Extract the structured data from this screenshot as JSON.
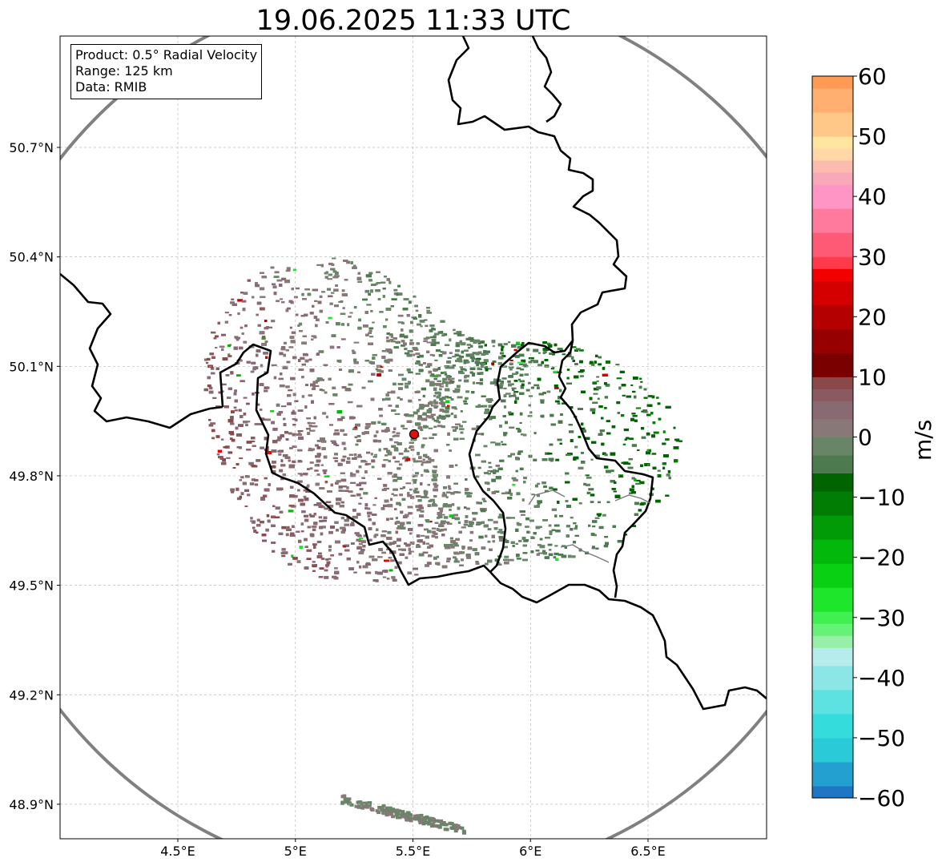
{
  "title": "19.06.2025 11:33 UTC",
  "info_box": {
    "product": "Product: 0.5° Radial Velocity",
    "range": "Range: 125 km",
    "data": "Data: RMIB"
  },
  "map": {
    "lon_range": [
      4.0,
      7.0
    ],
    "lat_range": [
      48.8,
      51.0
    ],
    "x_ticks": [
      {
        "value": 4.5,
        "label": "4.5°E"
      },
      {
        "value": 5.0,
        "label": "5°E"
      },
      {
        "value": 5.5,
        "label": "5.5°E"
      },
      {
        "value": 6.0,
        "label": "6°E"
      },
      {
        "value": 6.5,
        "label": "6.5°E"
      }
    ],
    "y_ticks": [
      {
        "value": 48.9,
        "label": "48.9°N"
      },
      {
        "value": 49.2,
        "label": "49.2°N"
      },
      {
        "value": 49.5,
        "label": "49.5°N"
      },
      {
        "value": 49.8,
        "label": "49.8°N"
      },
      {
        "value": 50.1,
        "label": "50.1°N"
      },
      {
        "value": 50.4,
        "label": "50.4°N"
      },
      {
        "value": 50.7,
        "label": "50.7°N"
      }
    ],
    "radar_site": {
      "lon": 5.505,
      "lat": 49.914
    },
    "gridlines": true,
    "range_ring_color": "#808080",
    "site_marker_color": "#e01010"
  },
  "colorbar": {
    "units": "m/s",
    "min": -60,
    "max": 60,
    "ticks": [
      {
        "value": 60,
        "label": "60"
      },
      {
        "value": 50,
        "label": "50"
      },
      {
        "value": 40,
        "label": "40"
      },
      {
        "value": 30,
        "label": "30"
      },
      {
        "value": 20,
        "label": "20"
      },
      {
        "value": 10,
        "label": "10"
      },
      {
        "value": 0,
        "label": "0"
      },
      {
        "value": -10,
        "label": "−10"
      },
      {
        "value": -20,
        "label": "−20"
      },
      {
        "value": -30,
        "label": "−30"
      },
      {
        "value": -40,
        "label": "−40"
      },
      {
        "value": -50,
        "label": "−50"
      },
      {
        "value": -60,
        "label": "−60"
      }
    ],
    "bands": [
      {
        "from": -60,
        "to": -58,
        "color": "#1f77c4"
      },
      {
        "from": -58,
        "to": -54,
        "color": "#23a0cf"
      },
      {
        "from": -54,
        "to": -50,
        "color": "#2bcad9"
      },
      {
        "from": -50,
        "to": -46,
        "color": "#35dcdc"
      },
      {
        "from": -46,
        "to": -42,
        "color": "#5ee1e1"
      },
      {
        "from": -42,
        "to": -38,
        "color": "#8de6e6"
      },
      {
        "from": -38,
        "to": -35,
        "color": "#b6ecec"
      },
      {
        "from": -35,
        "to": -33,
        "color": "#96f0a8"
      },
      {
        "from": -33,
        "to": -31,
        "color": "#66f276"
      },
      {
        "from": -31,
        "to": -29,
        "color": "#40f050"
      },
      {
        "from": -29,
        "to": -25,
        "color": "#1ee62a"
      },
      {
        "from": -25,
        "to": -21,
        "color": "#0ad014"
      },
      {
        "from": -21,
        "to": -17,
        "color": "#02b80a"
      },
      {
        "from": -17,
        "to": -13,
        "color": "#009b06"
      },
      {
        "from": -13,
        "to": -9,
        "color": "#007d02"
      },
      {
        "from": -9,
        "to": -6,
        "color": "#006400"
      },
      {
        "from": -6,
        "to": -3,
        "color": "#4e7a50"
      },
      {
        "from": -3,
        "to": 0,
        "color": "#688568"
      },
      {
        "from": 0,
        "to": 3,
        "color": "#887878"
      },
      {
        "from": 3,
        "to": 6,
        "color": "#8a6a72"
      },
      {
        "from": 6,
        "to": 8,
        "color": "#8a5a60"
      },
      {
        "from": 8,
        "to": 10,
        "color": "#8a4848"
      },
      {
        "from": 10,
        "to": 14,
        "color": "#7a0000"
      },
      {
        "from": 14,
        "to": 18,
        "color": "#960000"
      },
      {
        "from": 18,
        "to": 22,
        "color": "#b40000"
      },
      {
        "from": 22,
        "to": 26,
        "color": "#d40000"
      },
      {
        "from": 26,
        "to": 28,
        "color": "#f20000"
      },
      {
        "from": 28,
        "to": 30,
        "color": "#ff3a4a"
      },
      {
        "from": 30,
        "to": 34,
        "color": "#ff5a75"
      },
      {
        "from": 34,
        "to": 38,
        "color": "#ff7a9c"
      },
      {
        "from": 38,
        "to": 42,
        "color": "#ff95c5"
      },
      {
        "from": 42,
        "to": 44,
        "color": "#f8a8b8"
      },
      {
        "from": 44,
        "to": 46,
        "color": "#fdbbb0"
      },
      {
        "from": 46,
        "to": 48,
        "color": "#ffd7a8"
      },
      {
        "from": 48,
        "to": 50,
        "color": "#ffe6a0"
      },
      {
        "from": 50,
        "to": 54,
        "color": "#ffc888"
      },
      {
        "from": 54,
        "to": 58,
        "color": "#ffb070"
      },
      {
        "from": 58,
        "to": 60,
        "color": "#ff9a55"
      }
    ]
  }
}
